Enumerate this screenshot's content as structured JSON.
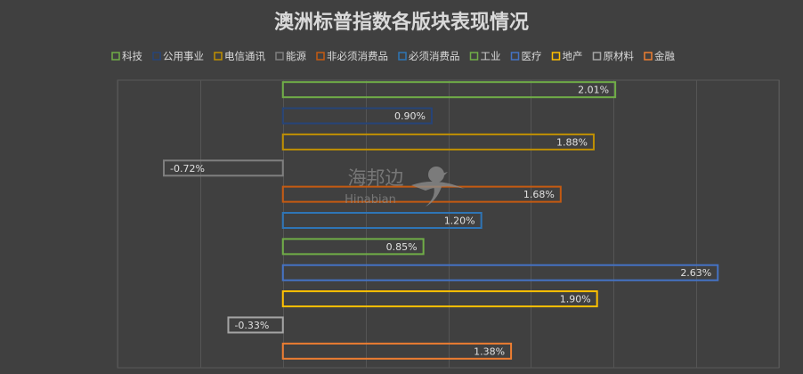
{
  "chart_data": {
    "type": "bar",
    "orientation": "horizontal",
    "title": "澳洲标普指数各版块表现情况",
    "xlim": [
      -1.0,
      3.0
    ],
    "grid": true,
    "legend_position": "top",
    "series": [
      {
        "name": "科技",
        "value": 2.01,
        "label": "2.01%",
        "color": "#70ad47"
      },
      {
        "name": "公用事业",
        "value": 0.9,
        "label": "0.90%",
        "color": "#264478"
      },
      {
        "name": "电信通讯",
        "value": 1.88,
        "label": "1.88%",
        "color": "#bf8f00"
      },
      {
        "name": "能源",
        "value": -0.72,
        "label": "-0.72%",
        "color": "#7f7f7f"
      },
      {
        "name": "非必须消费品",
        "value": 1.68,
        "label": "1.68%",
        "color": "#c55a11"
      },
      {
        "name": "必须消费品",
        "value": 1.2,
        "label": "1.20%",
        "color": "#2e75b6"
      },
      {
        "name": "工业",
        "value": 0.85,
        "label": "0.85%",
        "color": "#70ad47"
      },
      {
        "name": "医疗",
        "value": 2.63,
        "label": "2.63%",
        "color": "#4472c4"
      },
      {
        "name": "地产",
        "value": 1.9,
        "label": "1.90%",
        "color": "#ffc000"
      },
      {
        "name": "原材料",
        "value": -0.33,
        "label": "-0.33%",
        "color": "#a5a5a5"
      },
      {
        "name": "金融",
        "value": 1.38,
        "label": "1.38%",
        "color": "#ed7d31"
      }
    ]
  },
  "watermark": {
    "chinese": "海邦边",
    "english": "Hinabian"
  }
}
